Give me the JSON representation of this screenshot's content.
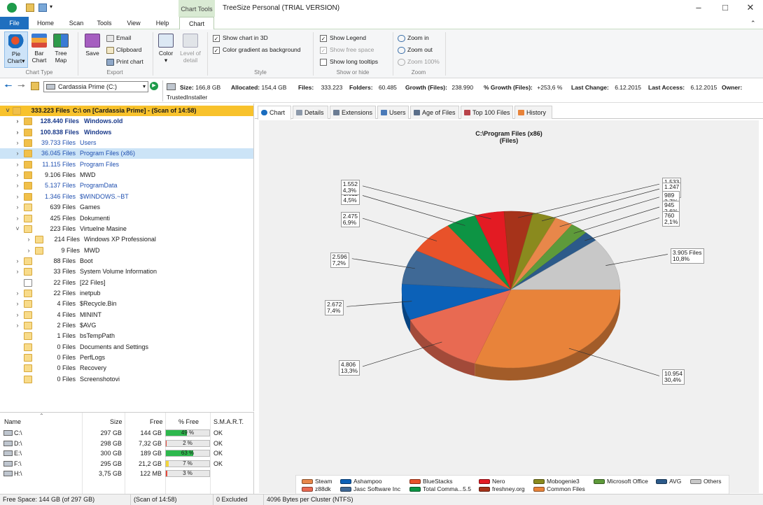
{
  "window": {
    "title": "TreeSize Personal  (TRIAL VERSION)",
    "chart_tools": "Chart Tools"
  },
  "tabs": [
    "File",
    "Home",
    "Scan",
    "Tools",
    "View",
    "Help",
    "Chart"
  ],
  "ribbon": {
    "chart_type": {
      "label": "Chart Type",
      "pie": [
        "Pie",
        "Chart"
      ],
      "bar": [
        "Bar",
        "Chart"
      ],
      "treemap": [
        "Tree",
        "Map"
      ]
    },
    "export": {
      "label": "Export",
      "save": "Save",
      "email": "Email",
      "clipboard": "Clipboard",
      "print": "Print chart"
    },
    "color": "Color",
    "level": [
      "Level of",
      "detail"
    ],
    "style": {
      "label": "Style",
      "show3d": "Show chart in 3D",
      "gradient": "Color gradient as background"
    },
    "showhide": {
      "label": "Show or hide",
      "legend": "Show Legend",
      "freespace": "Show free space",
      "tooltips": "Show long tooltips"
    },
    "zoom": {
      "label": "Zoom",
      "in": "Zoom in",
      "out": "Zoom out",
      "full": "Zoom 100%"
    }
  },
  "pathbar": {
    "drive": "Cardassia Prime (C:)",
    "size_lbl": "Size:",
    "size": "166,8 GB",
    "alloc_lbl": "Allocated:",
    "alloc": "154,4 GB",
    "files_lbl": "Files:",
    "files": "333.223",
    "folders_lbl": "Folders:",
    "folders": "60.485",
    "growth_lbl": "Growth (Files):",
    "growth": "238.990",
    "pgrowth_lbl": "% Growth (Files):",
    "pgrowth": "+253,6 %",
    "lastchange_lbl": "Last Change:",
    "lastchange": "6.12.2015",
    "lastaccess_lbl": "Last Access:",
    "lastaccess": "6.12.2015",
    "owner_lbl": "Owner:",
    "owner": "TrustedInstaller"
  },
  "tree": [
    {
      "count": "333.223 Files",
      "name": "C:\\ on  [Cardassia Prime] - (Scan of 14:58)"
    },
    {
      "count": "128.440 Files",
      "name": "Windows.old"
    },
    {
      "count": "100.838 Files",
      "name": "Windows"
    },
    {
      "count": "39.733 Files",
      "name": "Users"
    },
    {
      "count": "36.045 Files",
      "name": "Program Files (x86)"
    },
    {
      "count": "11.115 Files",
      "name": "Program Files"
    },
    {
      "count": "9.106 Files",
      "name": "MWD"
    },
    {
      "count": "5.137 Files",
      "name": "ProgramData"
    },
    {
      "count": "1.346 Files",
      "name": "$WINDOWS.~BT"
    },
    {
      "count": "639 Files",
      "name": "Games"
    },
    {
      "count": "425 Files",
      "name": "Dokumenti"
    },
    {
      "count": "223 Files",
      "name": "Virtuelne Masine"
    },
    {
      "count": "214 Files",
      "name": "Windows XP Professional"
    },
    {
      "count": "9 Files",
      "name": "MWD"
    },
    {
      "count": "88 Files",
      "name": "Boot"
    },
    {
      "count": "33 Files",
      "name": "System Volume Information"
    },
    {
      "count": "22 Files",
      "name": "[22 Files]"
    },
    {
      "count": "22 Files",
      "name": "inetpub"
    },
    {
      "count": "4 Files",
      "name": "$Recycle.Bin"
    },
    {
      "count": "4 Files",
      "name": "MININT"
    },
    {
      "count": "2 Files",
      "name": "$AVG"
    },
    {
      "count": "1 Files",
      "name": "bsTempPath"
    },
    {
      "count": "0 Files",
      "name": "Documents and Settings"
    },
    {
      "count": "0 Files",
      "name": "PerfLogs"
    },
    {
      "count": "0 Files",
      "name": "Recovery"
    },
    {
      "count": "0 Files",
      "name": "Screenshotovi"
    }
  ],
  "drives": {
    "headers": [
      "Name",
      "Size",
      "Free",
      "% Free",
      "S.M.A.R.T."
    ],
    "rows": [
      {
        "name": "C:\\",
        "size": "297 GB",
        "free": "144 GB",
        "pfree": "49 %",
        "pct": 49,
        "smart": "OK",
        "color": "#2db84d"
      },
      {
        "name": "D:\\",
        "size": "298 GB",
        "free": "7,32 GB",
        "pfree": "2 %",
        "pct": 2,
        "smart": "OK",
        "color": "#e84b3c"
      },
      {
        "name": "E:\\",
        "size": "300 GB",
        "free": "189 GB",
        "pfree": "63 %",
        "pct": 63,
        "smart": "OK",
        "color": "#2db84d"
      },
      {
        "name": "F:\\",
        "size": "295 GB",
        "free": "21,2 GB",
        "pfree": "7 %",
        "pct": 7,
        "smart": "OK",
        "color": "#f3d63b"
      },
      {
        "name": "H:\\",
        "size": "3,75 GB",
        "free": "122 MB",
        "pfree": "3 %",
        "pct": 3,
        "smart": "",
        "color": "#e84b3c"
      }
    ]
  },
  "viewtabs": [
    "Chart",
    "Details",
    "Extensions",
    "Users",
    "Age of Files",
    "Top 100 Files",
    "History"
  ],
  "chart_data": {
    "type": "pie",
    "title": "C:\\Program Files (x86)",
    "subtitle": "(Files)",
    "slices": [
      {
        "name": "Common Files",
        "value": 10954,
        "label": "10.954",
        "pct": "30,4%",
        "color": "#e8833a"
      },
      {
        "name": "z88dk",
        "value": 4806,
        "label": "4.806",
        "pct": "13,3%",
        "color": "#e86a52"
      },
      {
        "name": "Ashampoo",
        "value": 2672,
        "label": "2.672",
        "pct": "7,4%",
        "color": "#0b61b8"
      },
      {
        "name": "Jasc Software Inc",
        "value": 2596,
        "label": "2.596",
        "pct": "7,2%",
        "color": "#3f6996"
      },
      {
        "name": "BlueStacks",
        "value": 2475,
        "label": "2.475",
        "pct": "6,9%",
        "color": "#e8522a"
      },
      {
        "name": "Total Comma...5.5",
        "value": 1611,
        "label": "1.611",
        "pct": "4,5%",
        "color": "#0d9444"
      },
      {
        "name": "Nero",
        "value": 1552,
        "label": "1.552",
        "pct": "4,3%",
        "color": "#e31b23"
      },
      {
        "name": "freshney.org",
        "value": 1533,
        "label": "1.533",
        "pct": "4,3%",
        "color": "#a6331a"
      },
      {
        "name": "Mobogenie3",
        "value": 1247,
        "label": "1.247",
        "pct": "3,5%",
        "color": "#8a8a1e"
      },
      {
        "name": "Steam",
        "value": 989,
        "label": "989",
        "pct": "2,7%",
        "color": "#e8874a"
      },
      {
        "name": "Microsoft Office",
        "value": 945,
        "label": "945",
        "pct": "2,6%",
        "color": "#5e9a3a"
      },
      {
        "name": "AVG",
        "value": 760,
        "label": "760",
        "pct": "2,1%",
        "color": "#2c5a8a"
      },
      {
        "name": "Others",
        "value": 3905,
        "label": "3.905 Files",
        "pct": "10,8%",
        "color": "#c8c8c8"
      }
    ],
    "legend": [
      "Steam",
      "Ashampoo",
      "BlueStacks",
      "Nero",
      "Mobogenie3",
      "Microsoft Office",
      "AVG",
      "Others",
      "z88dk",
      "Jasc Software Inc",
      "Total Comma...5.5",
      "freshney.org",
      "Common Files"
    ]
  },
  "status": {
    "free": "Free Space: 144 GB  (of 297 GB)",
    "scan": "(Scan of 14:58)",
    "excluded": "0 Excluded",
    "cluster": "4096 Bytes per Cluster (NTFS)"
  }
}
